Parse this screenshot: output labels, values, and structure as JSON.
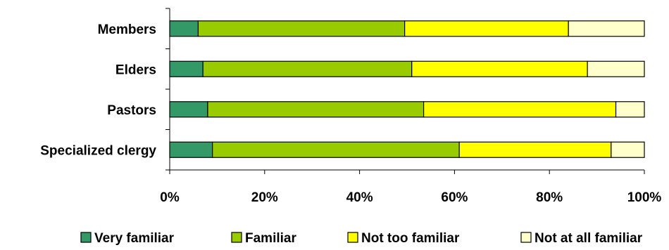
{
  "chart_data": {
    "type": "bar",
    "orientation": "horizontal",
    "stacked": true,
    "percent_stacked": true,
    "categories": [
      "Members",
      "Elders",
      "Pastors",
      "Specialized clergy"
    ],
    "series": [
      {
        "name": "Very familiar",
        "color": "#339966",
        "values": [
          6,
          7,
          8,
          9
        ]
      },
      {
        "name": "Familiar",
        "color": "#99cc00",
        "values": [
          43.5,
          44,
          45.5,
          52
        ]
      },
      {
        "name": "Not too familiar",
        "color": "#ffff00",
        "values": [
          34.5,
          37,
          40.5,
          32
        ]
      },
      {
        "name": "Not at all familiar",
        "color": "#ffffcc",
        "values": [
          16,
          12,
          6,
          7
        ]
      }
    ],
    "xlim": [
      0,
      100
    ],
    "x_ticks": [
      "0%",
      "20%",
      "40%",
      "60%",
      "80%",
      "100%"
    ],
    "grid": false,
    "legend_position": "bottom"
  }
}
